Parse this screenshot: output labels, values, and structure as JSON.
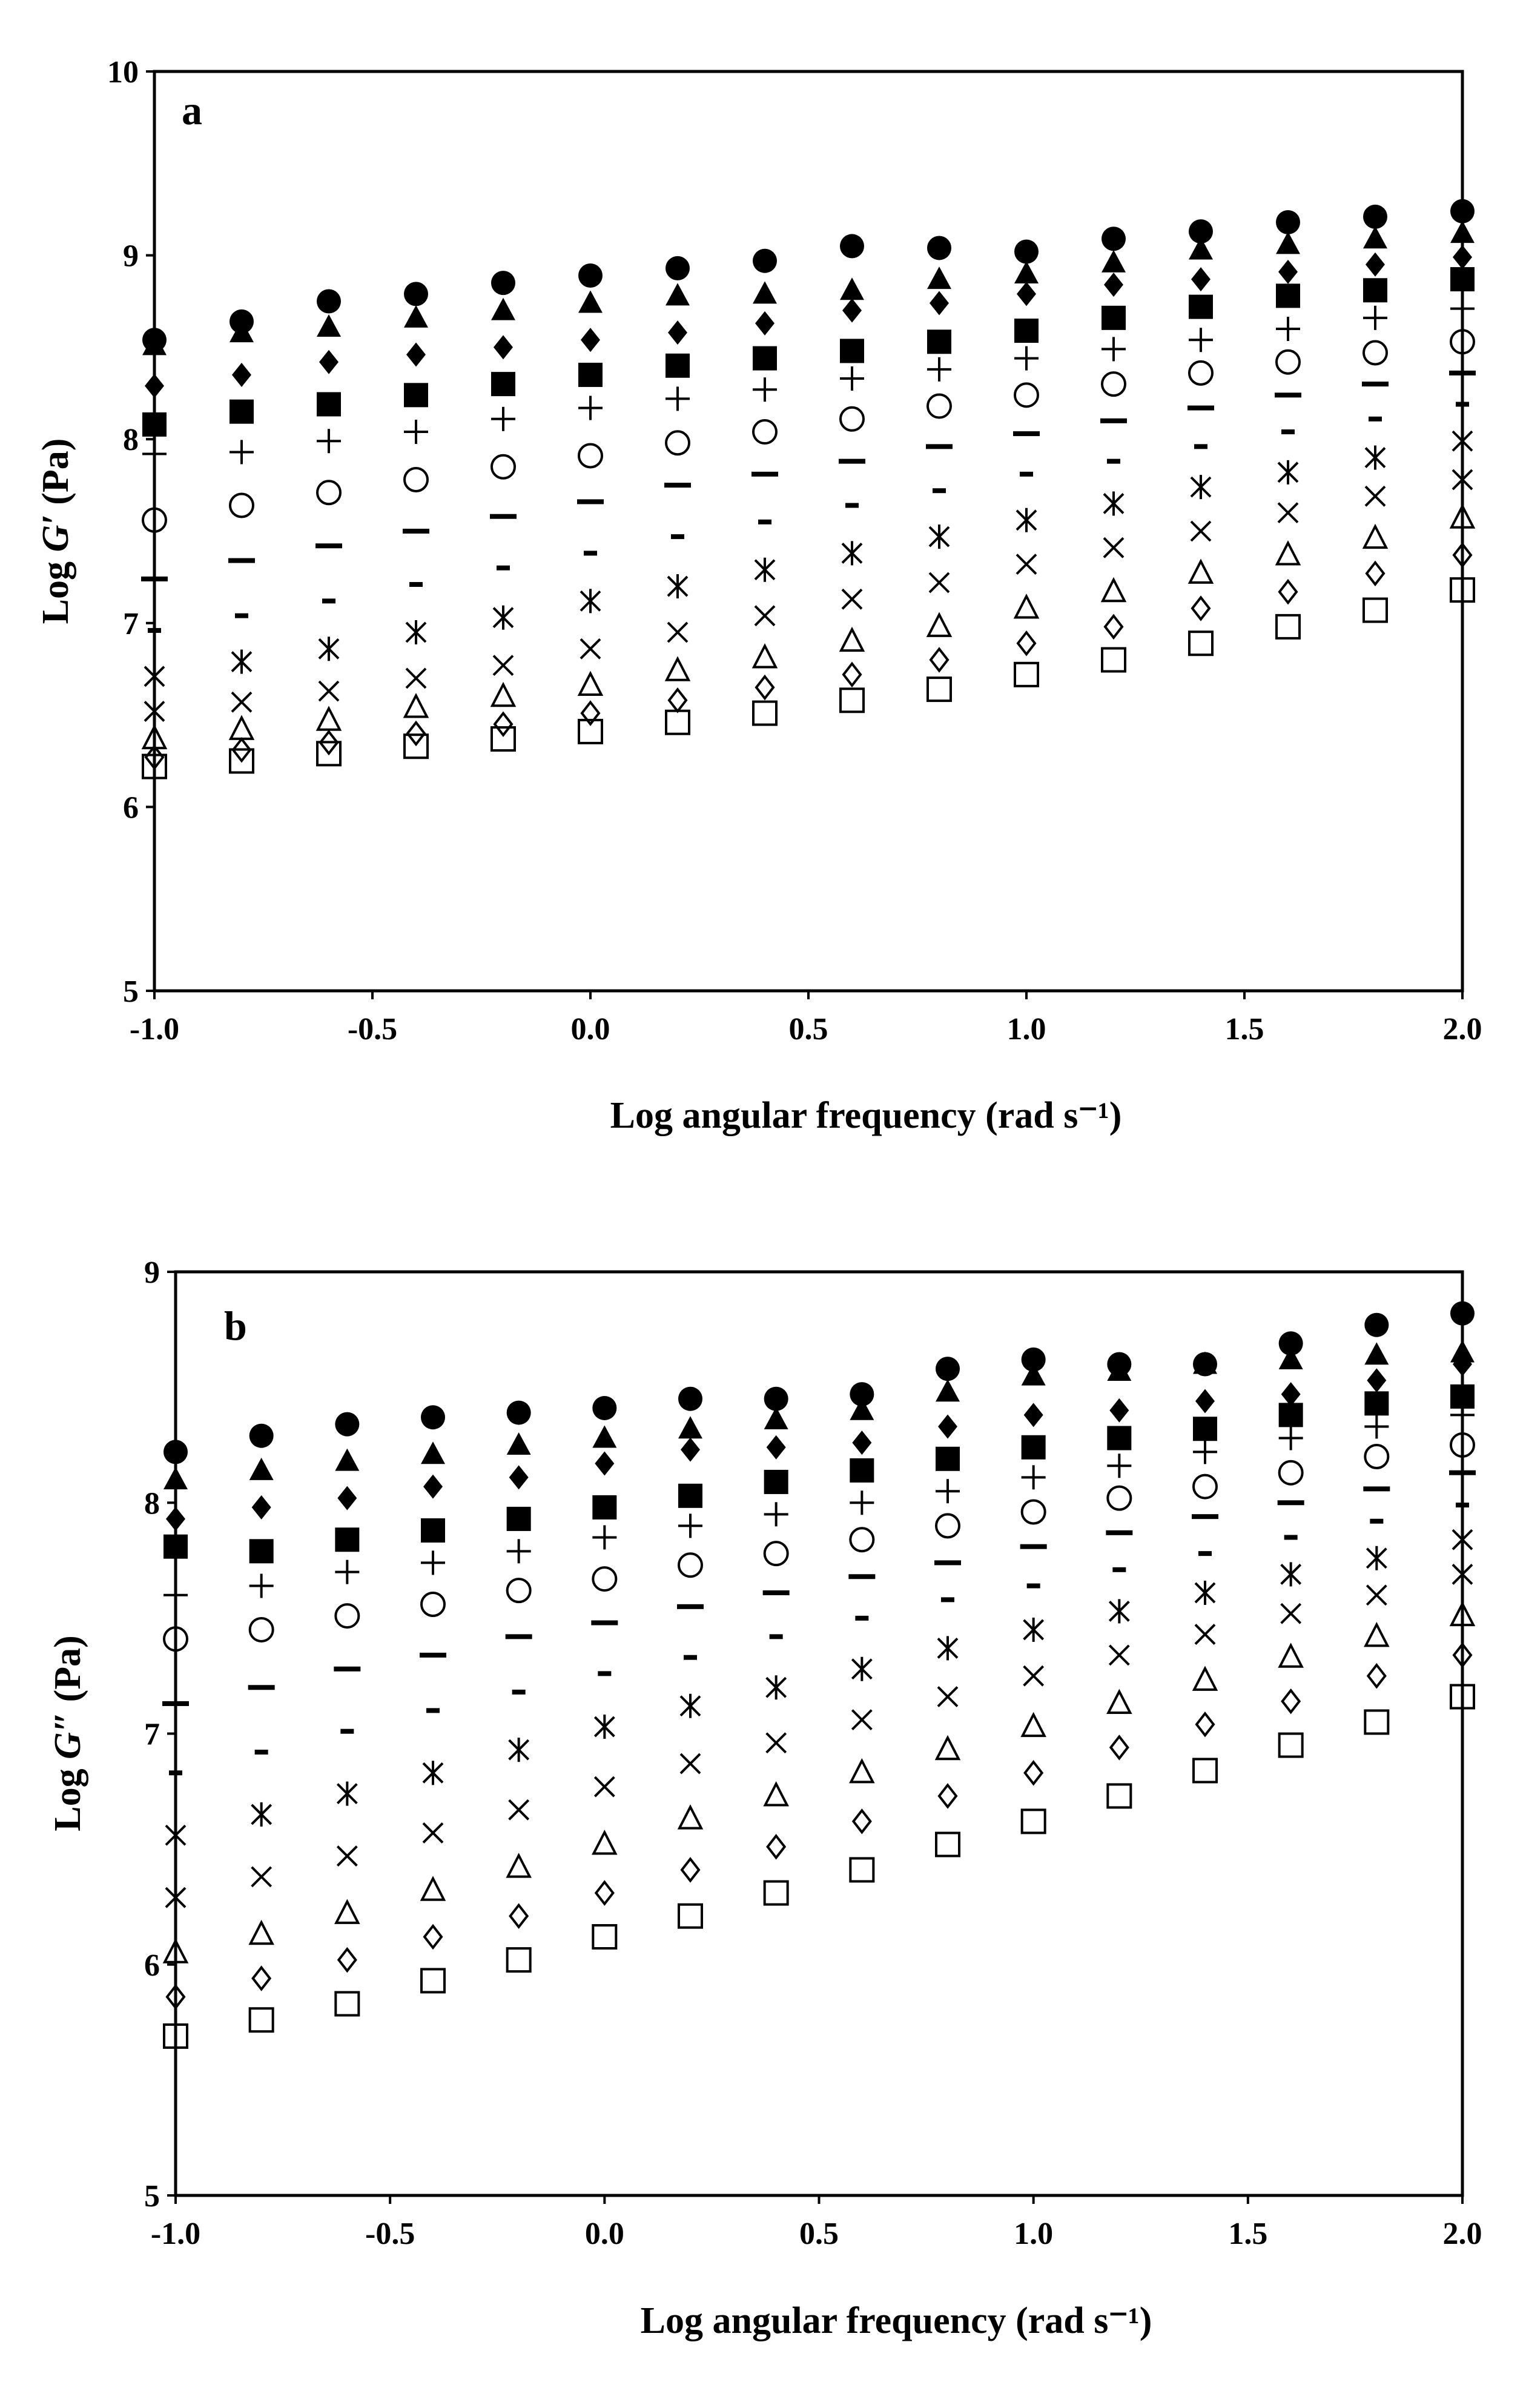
{
  "chart_data": [
    {
      "type": "scatter",
      "panel_label": "a",
      "xlabel": "Log angular frequency (rad s⁻¹)",
      "ylabel_prefix": "Log ",
      "ylabel_symbol": "G′",
      "ylabel_suffix": " (Pa)",
      "xlim": [
        -1.0,
        2.0
      ],
      "ylim": [
        5,
        10
      ],
      "xticks": [
        "-1.0",
        "-0.5",
        "0.0",
        "0.5",
        "1.0",
        "1.5",
        "2.0"
      ],
      "yticks": [
        "5",
        "6",
        "7",
        "8",
        "9",
        "10"
      ],
      "grid": false,
      "legend": "none",
      "x": [
        -1.0,
        -0.8,
        -0.6,
        -0.4,
        -0.2,
        0.0,
        0.2,
        0.4,
        0.6,
        0.8,
        1.0,
        1.2,
        1.4,
        1.6,
        1.8,
        2.0
      ],
      "series": [
        {
          "marker": "filled-circle",
          "values": [
            8.54,
            8.64,
            8.75,
            8.79,
            8.85,
            8.89,
            8.93,
            8.97,
            9.05,
            9.04,
            9.02,
            9.09,
            9.13,
            9.18,
            9.21,
            9.24
          ]
        },
        {
          "marker": "filled-triangle",
          "values": [
            8.51,
            8.58,
            8.61,
            8.66,
            8.7,
            8.74,
            8.78,
            8.79,
            8.81,
            8.87,
            8.9,
            8.96,
            9.03,
            9.06,
            9.09,
            9.12
          ]
        },
        {
          "marker": "filled-diamond",
          "values": [
            8.29,
            8.35,
            8.42,
            8.46,
            8.5,
            8.54,
            8.58,
            8.63,
            8.7,
            8.74,
            8.79,
            8.84,
            8.87,
            8.91,
            8.95,
            8.99
          ]
        },
        {
          "marker": "filled-square",
          "values": [
            8.08,
            8.15,
            8.19,
            8.24,
            8.3,
            8.35,
            8.4,
            8.44,
            8.48,
            8.53,
            8.59,
            8.66,
            8.72,
            8.78,
            8.81,
            8.87
          ]
        },
        {
          "marker": "plus",
          "values": [
            7.92,
            7.93,
            7.99,
            8.04,
            8.11,
            8.17,
            8.22,
            8.27,
            8.33,
            8.38,
            8.44,
            8.49,
            8.54,
            8.6,
            8.66,
            8.71
          ]
        },
        {
          "marker": "open-circle",
          "values": [
            7.56,
            7.64,
            7.71,
            7.78,
            7.85,
            7.91,
            7.98,
            8.04,
            8.11,
            8.18,
            8.24,
            8.3,
            8.36,
            8.42,
            8.47,
            8.53
          ]
        },
        {
          "marker": "long-dash",
          "values": [
            7.24,
            7.34,
            7.42,
            7.5,
            7.58,
            7.66,
            7.75,
            7.81,
            7.88,
            7.96,
            8.03,
            8.1,
            8.17,
            8.24,
            8.3,
            8.36
          ]
        },
        {
          "marker": "short-dash",
          "values": [
            6.96,
            7.04,
            7.12,
            7.21,
            7.3,
            7.38,
            7.47,
            7.55,
            7.64,
            7.72,
            7.81,
            7.88,
            7.96,
            8.04,
            8.11,
            8.19
          ]
        },
        {
          "marker": "asterisk",
          "values": [
            6.71,
            6.79,
            6.86,
            6.95,
            7.03,
            7.12,
            7.2,
            7.29,
            7.38,
            7.47,
            7.56,
            7.65,
            7.74,
            7.82,
            7.9,
            7.99
          ]
        },
        {
          "marker": "cross",
          "values": [
            6.52,
            6.57,
            6.63,
            6.7,
            6.77,
            6.86,
            6.95,
            7.04,
            7.13,
            7.22,
            7.32,
            7.41,
            7.5,
            7.6,
            7.69,
            7.78
          ]
        },
        {
          "marker": "open-triangle",
          "values": [
            6.37,
            6.42,
            6.47,
            6.54,
            6.6,
            6.66,
            6.74,
            6.81,
            6.9,
            6.98,
            7.08,
            7.17,
            7.27,
            7.37,
            7.46,
            7.57
          ]
        },
        {
          "marker": "open-diamond",
          "values": [
            6.27,
            6.31,
            6.35,
            6.4,
            6.45,
            6.51,
            6.58,
            6.65,
            6.72,
            6.8,
            6.89,
            6.98,
            7.08,
            7.17,
            7.27,
            7.37
          ]
        },
        {
          "marker": "open-square",
          "values": [
            6.22,
            6.25,
            6.29,
            6.33,
            6.37,
            6.41,
            6.46,
            6.51,
            6.58,
            6.64,
            6.72,
            6.8,
            6.89,
            6.98,
            7.07,
            7.18
          ]
        }
      ]
    },
    {
      "type": "scatter",
      "panel_label": "b",
      "xlabel": "Log angular frequency (rad s⁻¹)",
      "ylabel_prefix": "Log ",
      "ylabel_symbol": "G″",
      "ylabel_suffix": " (Pa)",
      "xlim": [
        -1.0,
        2.0
      ],
      "ylim": [
        5,
        9
      ],
      "xticks": [
        "-1.0",
        "-0.5",
        "0.0",
        "0.5",
        "1.0",
        "1.5",
        "2.0"
      ],
      "yticks": [
        "5",
        "6",
        "7",
        "8",
        "9"
      ],
      "grid": false,
      "legend": "none",
      "x": [
        -1.0,
        -0.8,
        -0.6,
        -0.4,
        -0.2,
        0.0,
        0.2,
        0.4,
        0.6,
        0.8,
        1.0,
        1.2,
        1.4,
        1.6,
        1.8,
        2.0
      ],
      "series": [
        {
          "marker": "filled-circle",
          "values": [
            8.22,
            8.29,
            8.34,
            8.37,
            8.39,
            8.41,
            8.45,
            8.45,
            8.47,
            8.58,
            8.62,
            8.6,
            8.6,
            8.69,
            8.77,
            8.82
          ]
        },
        {
          "marker": "filled-triangle",
          "values": [
            8.1,
            8.14,
            8.18,
            8.21,
            8.25,
            8.28,
            8.32,
            8.36,
            8.4,
            8.48,
            8.55,
            8.57,
            8.6,
            8.62,
            8.64,
            8.65
          ]
        },
        {
          "marker": "filled-diamond",
          "values": [
            7.93,
            7.98,
            8.02,
            8.07,
            8.11,
            8.17,
            8.23,
            8.24,
            8.26,
            8.33,
            8.38,
            8.4,
            8.44,
            8.47,
            8.53,
            8.6
          ]
        },
        {
          "marker": "filled-square",
          "values": [
            7.81,
            7.79,
            7.84,
            7.88,
            7.93,
            7.98,
            8.03,
            8.09,
            8.14,
            8.19,
            8.24,
            8.28,
            8.32,
            8.38,
            8.43,
            8.46
          ]
        },
        {
          "marker": "plus",
          "values": [
            7.6,
            7.64,
            7.7,
            7.74,
            7.79,
            7.85,
            7.9,
            7.95,
            8.0,
            8.05,
            8.11,
            8.16,
            8.22,
            8.28,
            8.33,
            8.38
          ]
        },
        {
          "marker": "open-circle",
          "values": [
            7.41,
            7.45,
            7.51,
            7.56,
            7.62,
            7.67,
            7.73,
            7.78,
            7.84,
            7.9,
            7.96,
            8.02,
            8.07,
            8.13,
            8.2,
            8.25
          ]
        },
        {
          "marker": "long-dash",
          "values": [
            7.13,
            7.2,
            7.28,
            7.34,
            7.42,
            7.48,
            7.55,
            7.61,
            7.68,
            7.74,
            7.81,
            7.87,
            7.94,
            8.0,
            8.06,
            8.13
          ]
        },
        {
          "marker": "short-dash",
          "values": [
            6.83,
            6.92,
            7.01,
            7.1,
            7.18,
            7.26,
            7.33,
            7.42,
            7.5,
            7.58,
            7.64,
            7.71,
            7.78,
            7.85,
            7.92,
            7.99
          ]
        },
        {
          "marker": "asterisk",
          "values": [
            6.56,
            6.65,
            6.74,
            6.83,
            6.93,
            7.03,
            7.12,
            7.2,
            7.28,
            7.37,
            7.45,
            7.53,
            7.61,
            7.69,
            7.76,
            7.84
          ]
        },
        {
          "marker": "cross",
          "values": [
            6.29,
            6.38,
            6.47,
            6.57,
            6.67,
            6.77,
            6.87,
            6.96,
            7.06,
            7.16,
            7.25,
            7.34,
            7.43,
            7.52,
            7.6,
            7.69
          ]
        },
        {
          "marker": "open-triangle",
          "values": [
            6.05,
            6.13,
            6.22,
            6.32,
            6.42,
            6.52,
            6.63,
            6.73,
            6.83,
            6.93,
            7.03,
            7.13,
            7.23,
            7.33,
            7.42,
            7.51
          ]
        },
        {
          "marker": "open-diamond",
          "values": [
            5.86,
            5.94,
            6.02,
            6.12,
            6.21,
            6.31,
            6.41,
            6.51,
            6.62,
            6.73,
            6.83,
            6.94,
            7.04,
            7.14,
            7.25,
            7.34
          ]
        },
        {
          "marker": "open-square",
          "values": [
            5.69,
            5.76,
            5.83,
            5.93,
            6.02,
            6.12,
            6.21,
            6.31,
            6.41,
            6.52,
            6.62,
            6.73,
            6.84,
            6.95,
            7.05,
            7.16
          ]
        }
      ]
    }
  ]
}
